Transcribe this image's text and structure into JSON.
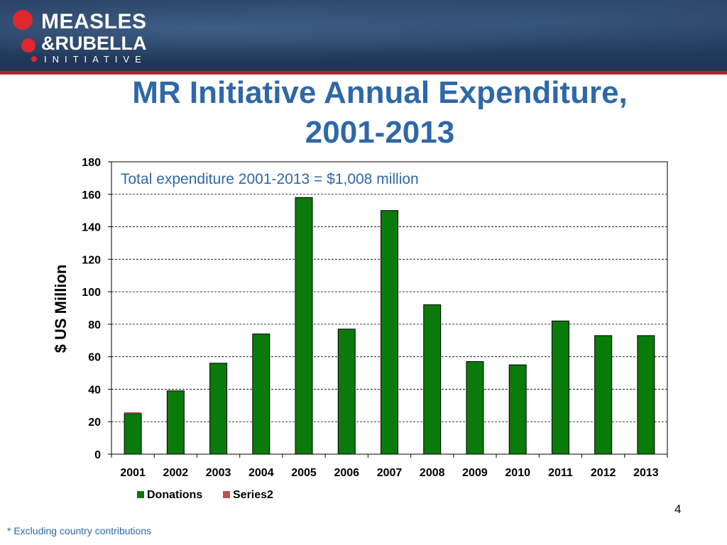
{
  "header": {
    "logo_line1": "MEASLES",
    "logo_line2": "&RUBELLA",
    "logo_line3": "INITIATIVE"
  },
  "title_line1": "MR Initiative Annual Expenditure,",
  "title_line2": "2001-2013",
  "footnote": "* Excluding country contributions",
  "page_number": "4",
  "colors": {
    "title": "#2e68a8",
    "donations": "#0a7a0a",
    "series2": "#c0504d",
    "banner": "#24406a",
    "stripe": "#b8202a"
  },
  "chart_data": {
    "type": "bar",
    "stacked": true,
    "categories": [
      "2001",
      "2002",
      "2003",
      "2004",
      "2005",
      "2006",
      "2007",
      "2008",
      "2009",
      "2010",
      "2011",
      "2012",
      "2013"
    ],
    "series": [
      {
        "name": "Donations",
        "values": [
          25,
          39,
          56,
          74,
          158,
          77,
          150,
          92,
          57,
          55,
          82,
          73,
          73
        ]
      },
      {
        "name": "Series2",
        "values": [
          0.8,
          0,
          0,
          0,
          0,
          0,
          0,
          0,
          0,
          0,
          0,
          0,
          0
        ]
      }
    ],
    "ylabel": "$ US Million",
    "xlabel": "",
    "ylim": [
      0,
      180
    ],
    "yticks": [
      0,
      20,
      40,
      60,
      80,
      100,
      120,
      140,
      160,
      180
    ],
    "grid": true,
    "legend_position": "bottom",
    "annotation": "Total expenditure 2001-2013 = $1,008 million"
  }
}
